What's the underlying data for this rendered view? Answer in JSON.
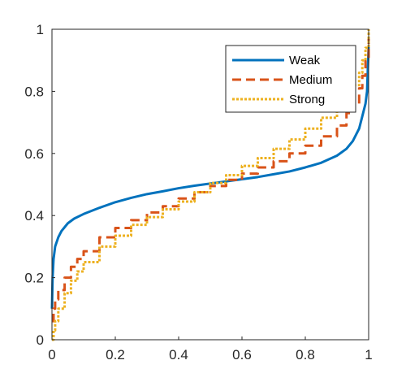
{
  "chart_data": {
    "type": "line",
    "title": "",
    "xlabel": "",
    "ylabel": "",
    "xlim": [
      0,
      1
    ],
    "ylim": [
      0,
      1
    ],
    "grid": false,
    "legend_position": "top-right",
    "xticks": [
      "0",
      "0.2",
      "0.4",
      "0.6",
      "0.8",
      "1"
    ],
    "yticks": [
      "0",
      "0.2",
      "0.4",
      "0.6",
      "0.8",
      "1"
    ],
    "series": [
      {
        "name": "Weak",
        "color": "#0072BD",
        "style": "solid",
        "x": [
          0,
          0.002,
          0.005,
          0.01,
          0.02,
          0.03,
          0.05,
          0.07,
          0.1,
          0.15,
          0.2,
          0.25,
          0.3,
          0.35,
          0.4,
          0.45,
          0.5,
          0.55,
          0.6,
          0.65,
          0.7,
          0.75,
          0.8,
          0.85,
          0.9,
          0.93,
          0.95,
          0.97,
          0.98,
          0.99,
          0.995,
          1
        ],
        "y": [
          0.1,
          0.2,
          0.26,
          0.3,
          0.33,
          0.35,
          0.375,
          0.39,
          0.405,
          0.425,
          0.443,
          0.457,
          0.469,
          0.478,
          0.488,
          0.496,
          0.503,
          0.51,
          0.517,
          0.524,
          0.533,
          0.542,
          0.555,
          0.57,
          0.593,
          0.615,
          0.64,
          0.68,
          0.72,
          0.76,
          0.8,
          0.95
        ]
      },
      {
        "name": "Medium",
        "color": "#D95319",
        "style": "dashed",
        "x": [
          0,
          0.005,
          0.01,
          0.02,
          0.04,
          0.06,
          0.08,
          0.1,
          0.15,
          0.2,
          0.25,
          0.3,
          0.35,
          0.4,
          0.45,
          0.5,
          0.55,
          0.6,
          0.65,
          0.7,
          0.75,
          0.8,
          0.85,
          0.9,
          0.93,
          0.95,
          0.97,
          0.98,
          0.99,
          1
        ],
        "y": [
          0.06,
          0.1,
          0.13,
          0.16,
          0.2,
          0.235,
          0.26,
          0.285,
          0.33,
          0.36,
          0.385,
          0.41,
          0.43,
          0.455,
          0.475,
          0.495,
          0.515,
          0.535,
          0.555,
          0.575,
          0.6,
          0.625,
          0.655,
          0.69,
          0.73,
          0.76,
          0.81,
          0.85,
          0.9,
          0.97
        ]
      },
      {
        "name": "Strong",
        "color": "#EDB120",
        "style": "dotted",
        "x": [
          0,
          0.005,
          0.01,
          0.02,
          0.04,
          0.06,
          0.08,
          0.1,
          0.15,
          0.2,
          0.25,
          0.3,
          0.35,
          0.4,
          0.45,
          0.5,
          0.55,
          0.6,
          0.65,
          0.7,
          0.75,
          0.8,
          0.85,
          0.9,
          0.93,
          0.95,
          0.97,
          0.98,
          0.99,
          1
        ],
        "y": [
          0,
          0.03,
          0.06,
          0.1,
          0.15,
          0.19,
          0.22,
          0.25,
          0.3,
          0.335,
          0.37,
          0.395,
          0.42,
          0.445,
          0.475,
          0.505,
          0.53,
          0.56,
          0.585,
          0.615,
          0.645,
          0.68,
          0.715,
          0.755,
          0.79,
          0.82,
          0.86,
          0.9,
          0.94,
          1
        ]
      }
    ]
  }
}
